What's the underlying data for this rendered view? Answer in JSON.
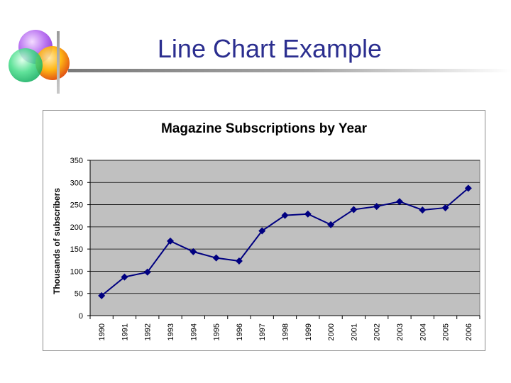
{
  "slide": {
    "title": "Line Chart Example"
  },
  "colors": {
    "title": "#2b2e8f",
    "plot_background": "#c0c0c0",
    "series_line": "#000080",
    "gridline": "#000000"
  },
  "chart_data": {
    "type": "line",
    "title": "Magazine Subscriptions by Year",
    "xlabel": "",
    "ylabel": "Thousands of subscribers",
    "x": [
      "1990",
      "1991",
      "1992",
      "1993",
      "1994",
      "1995",
      "1996",
      "1997",
      "1998",
      "1999",
      "2000",
      "2001",
      "2002",
      "2003",
      "2004",
      "2005",
      "2006"
    ],
    "series": [
      {
        "values": [
          45,
          87,
          98,
          168,
          144,
          130,
          123,
          191,
          226,
          229,
          205,
          239,
          246,
          257,
          238,
          243,
          287
        ],
        "marker": "diamond"
      }
    ],
    "ylim": [
      0,
      350
    ],
    "yticks": [
      0,
      50,
      100,
      150,
      200,
      250,
      300,
      350
    ],
    "grid": true,
    "legend": "none"
  }
}
